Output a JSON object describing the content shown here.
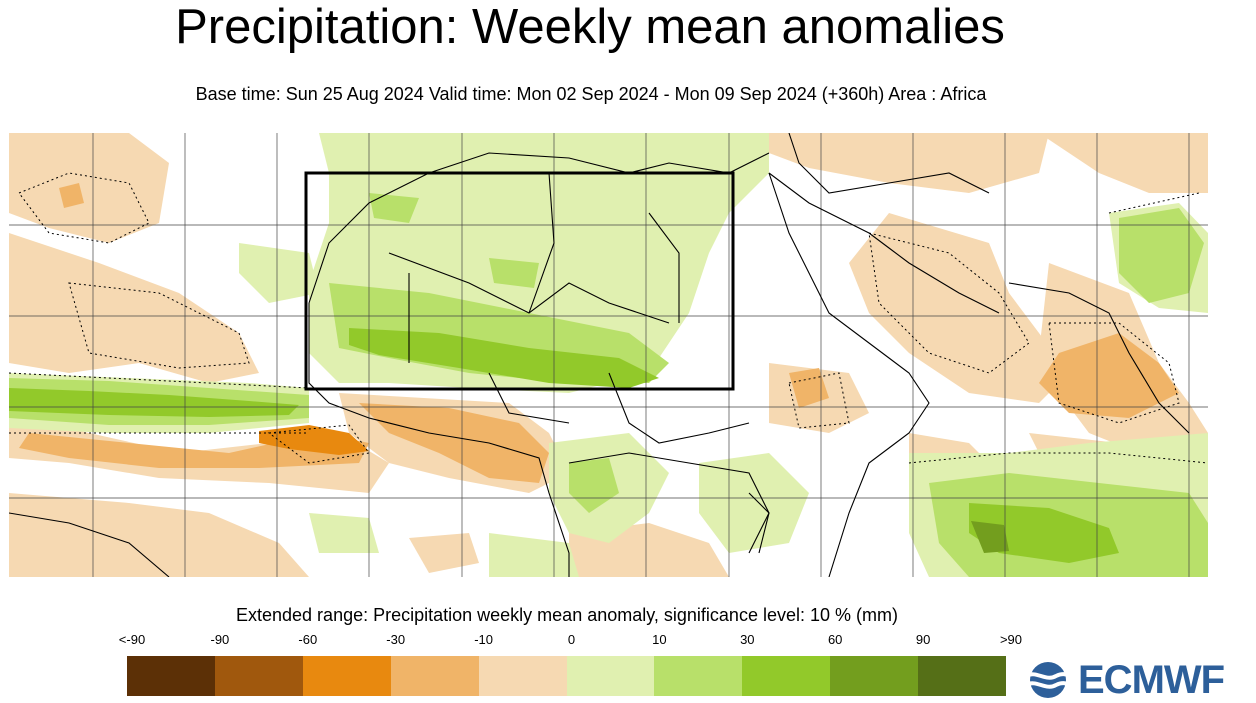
{
  "title": "Precipitation: Weekly mean anomalies",
  "subtitle": "Base time: Sun 25 Aug 2024 Valid time: Mon 02 Sep 2024 - Mon 09 Sep 2024 (+360h) Area : Africa",
  "legend": {
    "title": "Extended range: Precipitation weekly mean anomaly, significance level: 10 % (mm)",
    "ticks": [
      "<-90",
      "-90",
      "-60",
      "-30",
      "-10",
      "0",
      "10",
      "30",
      "60",
      "90",
      ">90"
    ],
    "colors": [
      "#5c3006",
      "#a0580d",
      "#e8890f",
      "#f0b468",
      "#f6d9b2",
      "#e0f0b0",
      "#b8e06a",
      "#92c92a",
      "#739e1e",
      "#556f17"
    ]
  },
  "logo": {
    "text": "ECMWF",
    "color": "#2d5f9a",
    "icon": "ecmwf-logo-icon"
  },
  "map": {
    "region": "Africa",
    "colors": {
      "dry_light": "#f6d9b2",
      "dry_mid": "#f0b468",
      "dry_strong": "#e8890f",
      "wet_light": "#e0f0b0",
      "wet_mid": "#b8e06a",
      "wet_strong": "#92c92a",
      "wet_very": "#739e1e",
      "wet_extreme": "#556f17",
      "grid": "#444444",
      "coast": "#000000"
    }
  }
}
